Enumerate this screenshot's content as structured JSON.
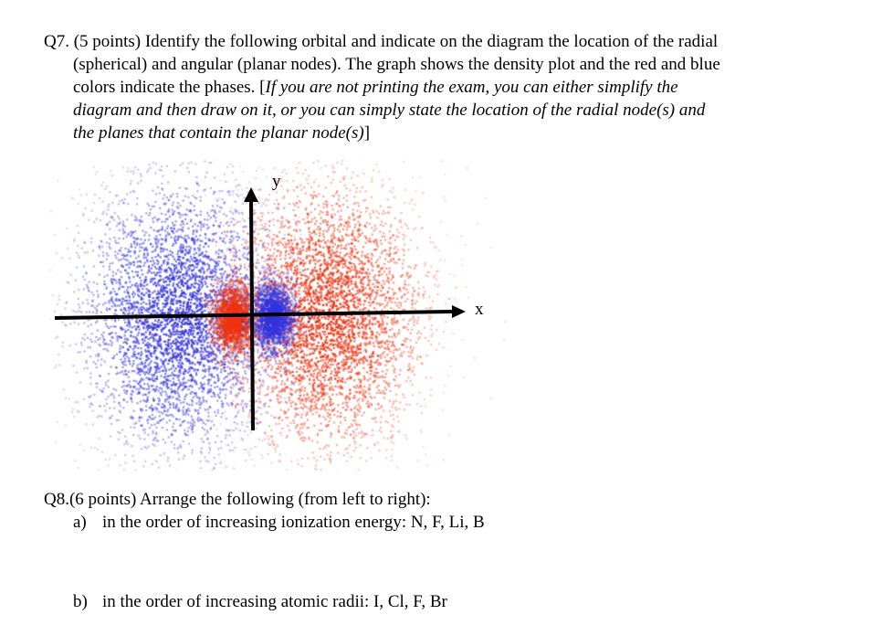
{
  "q7": {
    "line1": "Q7. (5 points) Identify the following orbital and indicate on the diagram the location of the radial",
    "line2": "(spherical) and angular (planar nodes). The graph shows the density plot and the red and blue",
    "line3_normal": "colors indicate the phases. [",
    "line3_italic": "If you are not printing the exam, you can either simplify the",
    "line4_italic": "diagram and then draw on it, or you can simply state the location of the radial node(s) and",
    "line5_italic": "the planes that contain the planar node(s)",
    "line5_end": "]"
  },
  "diagram": {
    "x_label": "x",
    "y_label": "y",
    "colors": {
      "positive_phase": "#ee3311",
      "negative_phase": "#3333dd",
      "axis": "#000000"
    },
    "description": "Density plot of a p-type orbital with a radial node: small inner lobes (red left, blue right) and large outer lobes (blue left, red right)"
  },
  "q8": {
    "title": "Q8.(6 points) Arrange the following (from left to right):",
    "items": [
      {
        "marker": "a)",
        "text": "in the order of increasing ionization energy: N, F, Li, B"
      },
      {
        "marker": "b)",
        "text": "in the order of increasing atomic radii: I, Cl, F, Br"
      }
    ]
  }
}
